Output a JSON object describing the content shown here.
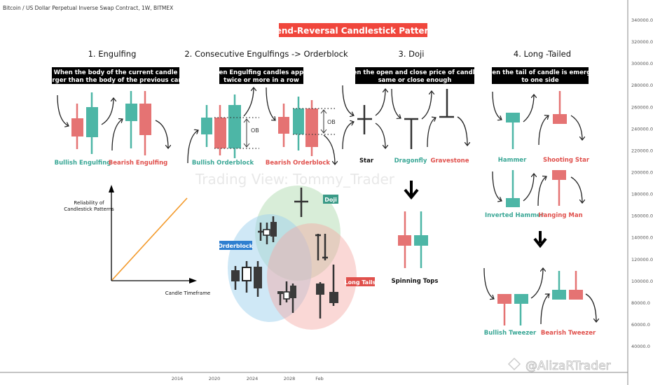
{
  "header": {
    "symbol_title": "Bitcoin / US Dollar Perpetual Inverse Swap Contract, 1W, BITMEX"
  },
  "main_title": "Trend-Reversal Candlestick Patterns",
  "sections": [
    {
      "title": "1. Engulfing",
      "desc": [
        "When the body of the current candle",
        "is larger than the body of the previous candle"
      ],
      "patterns": [
        "Bullish Engulfing",
        "Bearish Engulfing"
      ]
    },
    {
      "title": "2. Consecutive Engulfings -> Orderblock",
      "desc": [
        "When Engulfing candles appear",
        "twice or more in a row"
      ],
      "patterns": [
        "Bullish Orderblock",
        "Bearish Orderblock"
      ],
      "ob_label": "OB"
    },
    {
      "title": "3. Doji",
      "desc": [
        "when the open and close price of candle is",
        "same or close enough"
      ],
      "patterns": [
        "Star",
        "Dragonfly",
        "Gravestone",
        "Spinning Tops"
      ]
    },
    {
      "title": "4. Long -Tailed",
      "desc": [
        "When the tail of candle is emerged",
        "to one side"
      ],
      "patterns": [
        "Hammer",
        "Shooting Star",
        "Inverted Hammer",
        "Hanging Man",
        "Bullish Tweezer",
        "Bearish Tweezer"
      ]
    }
  ],
  "reliability_chart": {
    "ylabel": [
      "Reliability of",
      "Candlestick Patterns"
    ],
    "xlabel": "Candle Timeframe"
  },
  "venn": {
    "labels": [
      "Doji",
      "Orderblock",
      "Long Tails"
    ]
  },
  "watermarks": [
    "Trading View: Tommy_Trader",
    "@AlizaRTrader"
  ],
  "price_axis": [
    "340000.0",
    "320000.0",
    "300000.0",
    "280000.0",
    "260000.0",
    "240000.0",
    "220000.0",
    "200000.0",
    "180000.0",
    "160000.0",
    "140000.0",
    "120000.0",
    "100000.0",
    "80000.0",
    "60000.0",
    "40000.0"
  ],
  "time_axis": [
    "2016",
    "2020",
    "2024",
    "2028",
    "Feb"
  ],
  "colors": {
    "bull": "#4db6a6",
    "bear": "#e57373",
    "title_bg": "#f0463c",
    "orderblock": "#2f7fd0"
  }
}
